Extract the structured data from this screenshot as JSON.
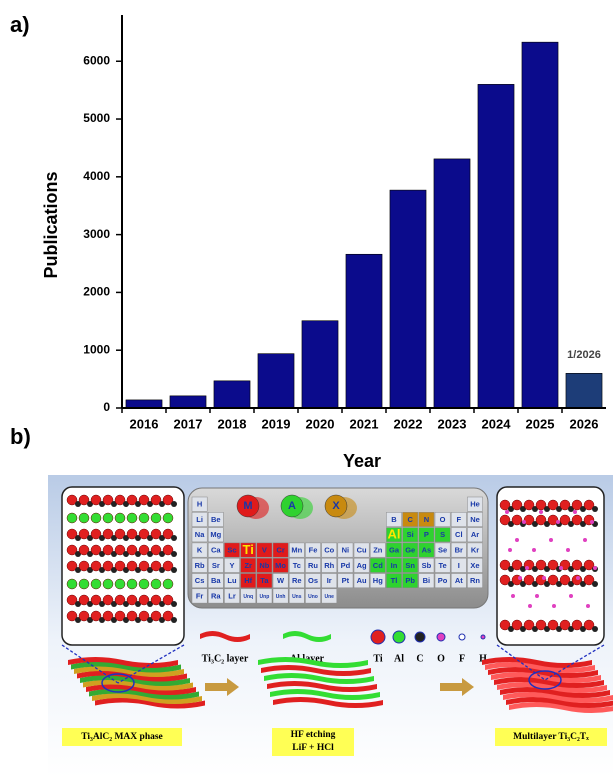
{
  "panel_a": "a)",
  "chart_data": {
    "type": "bar",
    "y_label": "Publications",
    "x_label": "Year",
    "categories": [
      "2016",
      "2017",
      "2018",
      "2019",
      "2020",
      "2021",
      "2022",
      "2023",
      "2024",
      "2025",
      "2026"
    ],
    "values": [
      140,
      210,
      470,
      940,
      1510,
      2660,
      3770,
      4310,
      5600,
      6330,
      600
    ],
    "colors": [
      "#0b0b8c",
      "#0b0b8c",
      "#0b0b8c",
      "#0b0b8c",
      "#0b0b8c",
      "#0b0b8c",
      "#0b0b8c",
      "#0b0b8c",
      "#0b0b8c",
      "#0b0b8c",
      "#1d3d78"
    ],
    "annotation": "1/2026",
    "ylim": [
      0,
      6800
    ],
    "yticks": [
      0,
      1000,
      2000,
      3000,
      4000,
      5000,
      6000
    ],
    "grid": false
  },
  "panel_b": {
    "label": "b)",
    "max_labels": [
      "M",
      "A",
      "X"
    ],
    "periodic_table": [
      [
        "H",
        null,
        null,
        null,
        null,
        null,
        null,
        null,
        null,
        null,
        null,
        null,
        null,
        null,
        null,
        null,
        null,
        "He"
      ],
      [
        "Li",
        "Be",
        null,
        null,
        null,
        null,
        null,
        null,
        null,
        null,
        null,
        null,
        "B",
        "C",
        "N",
        "O",
        "F",
        "Ne"
      ],
      [
        "Na",
        "Mg",
        null,
        null,
        null,
        null,
        null,
        null,
        null,
        null,
        null,
        null,
        "Al",
        "Si",
        "P",
        "S",
        "Cl",
        "Ar"
      ],
      [
        "K",
        "Ca",
        "Sc",
        "Ti",
        "V",
        "Cr",
        "Mn",
        "Fe",
        "Co",
        "Ni",
        "Cu",
        "Zn",
        "Ga",
        "Ge",
        "As",
        "Se",
        "Br",
        "Kr"
      ],
      [
        "Rb",
        "Sr",
        "Y",
        "Zr",
        "Nb",
        "Mo",
        "Tc",
        "Ru",
        "Rh",
        "Pd",
        "Ag",
        "Cd",
        "In",
        "Sn",
        "Sb",
        "Te",
        "I",
        "Xe"
      ],
      [
        "Cs",
        "Ba",
        "Lu",
        "Hf",
        "Ta",
        "W",
        "Re",
        "Os",
        "Ir",
        "Pt",
        "Au",
        "Hg",
        "Tl",
        "Pb",
        "Bi",
        "Po",
        "At",
        "Rn"
      ],
      [
        "Fr",
        "Ra",
        "Lr",
        "Unq",
        "Unp",
        "Unh",
        "Uns",
        "Uno",
        "Une",
        null,
        null,
        null,
        null,
        null,
        null,
        null,
        null,
        null
      ]
    ],
    "layers": [
      "Ti₃C₂ layer",
      "Al layer"
    ],
    "atoms": [
      "Ti",
      "Al",
      "C",
      "O",
      "F",
      "H"
    ],
    "steps": [
      "Ti₃AlC₂ MAX phase",
      "HF etching",
      "LiF + HCl",
      "Multilayer Ti₃C₂Tₓ"
    ]
  }
}
